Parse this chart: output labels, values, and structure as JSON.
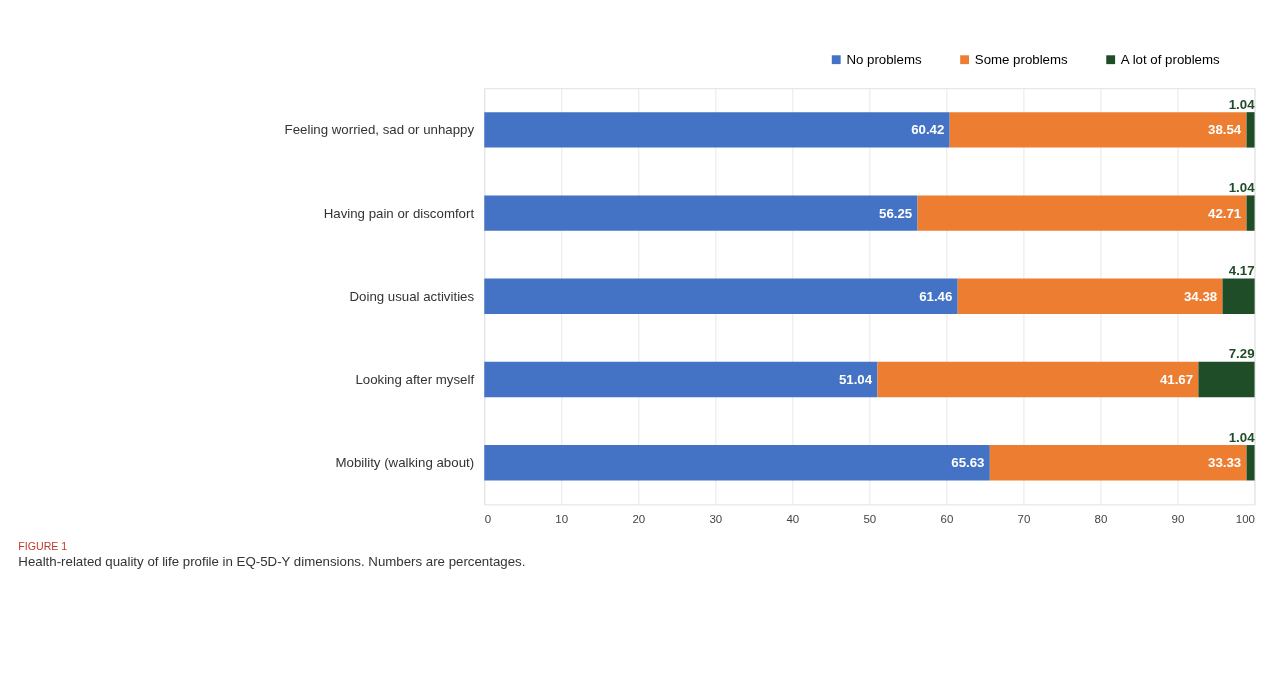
{
  "chart_data": {
    "type": "bar",
    "orientation": "horizontal",
    "stacked": true,
    "categories": [
      "Feeling worried, sad or unhappy",
      "Having pain or discomfort",
      "Doing usual activities",
      "Looking after myself",
      "Mobility (walking about)"
    ],
    "series": [
      {
        "name": "No problems",
        "color": "#4472c4",
        "values": [
          60.42,
          56.25,
          61.46,
          51.04,
          65.63
        ]
      },
      {
        "name": "Some problems",
        "color": "#ed7d31",
        "values": [
          38.54,
          42.71,
          34.38,
          41.67,
          33.33
        ]
      },
      {
        "name": "A lot of problems",
        "color": "#1e4d28",
        "values": [
          1.04,
          1.04,
          4.17,
          7.29,
          1.04
        ]
      }
    ],
    "xlim": [
      0,
      100
    ],
    "xticks": [
      0,
      10,
      20,
      30,
      40,
      50,
      60,
      70,
      80,
      90,
      100
    ],
    "grid": "x",
    "legend": "top right",
    "data_labels": true,
    "annotations": [
      "FIGURE 1",
      "Health-related quality of life profile in EQ-5D-Y dimensions. Numbers are percentages."
    ]
  }
}
